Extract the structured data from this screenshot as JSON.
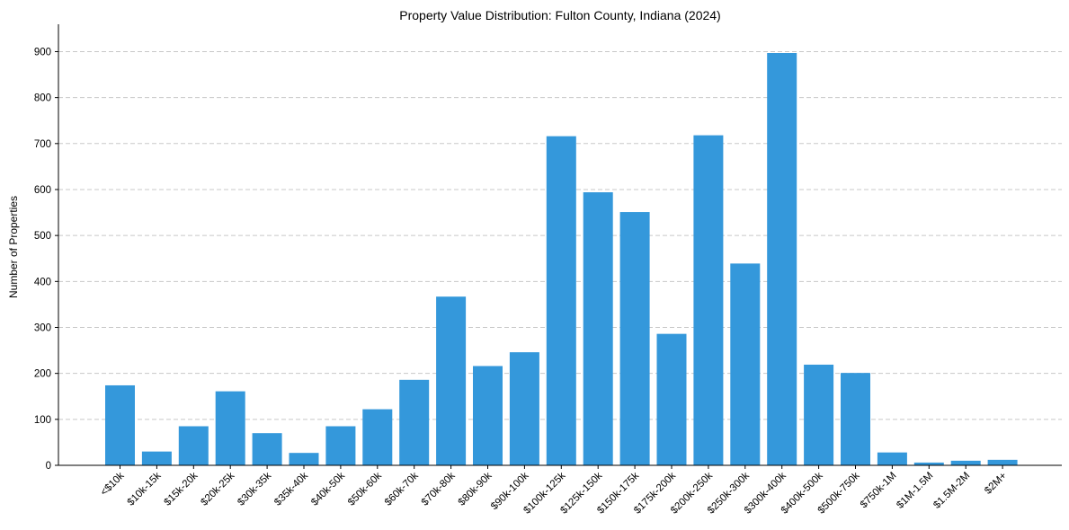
{
  "chart_data": {
    "type": "bar",
    "title": "Property Value Distribution: Fulton County, Indiana (2024)",
    "xlabel": "",
    "ylabel": "Number of Properties",
    "ylim": [
      0,
      940
    ],
    "yticks": [
      0,
      100,
      200,
      300,
      400,
      500,
      600,
      700,
      800,
      900
    ],
    "grid": true,
    "bar_color": "#3498db",
    "categories": [
      "<$10k",
      "$10k-15k",
      "$15k-20k",
      "$20k-25k",
      "$30k-35k",
      "$35k-40k",
      "$40k-50k",
      "$50k-60k",
      "$60k-70k",
      "$70k-80k",
      "$80k-90k",
      "$90k-100k",
      "$100k-125k",
      "$125k-150k",
      "$150k-175k",
      "$175k-200k",
      "$200k-250k",
      "$250k-300k",
      "$300k-400k",
      "$400k-500k",
      "$500k-750k",
      "$750k-1M",
      "$1M-1.5M",
      "$1.5M-2M",
      "$2M+"
    ],
    "values": [
      174,
      30,
      85,
      161,
      70,
      27,
      85,
      122,
      186,
      367,
      216,
      246,
      716,
      594,
      551,
      286,
      718,
      439,
      897,
      219,
      201,
      28,
      6,
      10,
      12
    ]
  }
}
